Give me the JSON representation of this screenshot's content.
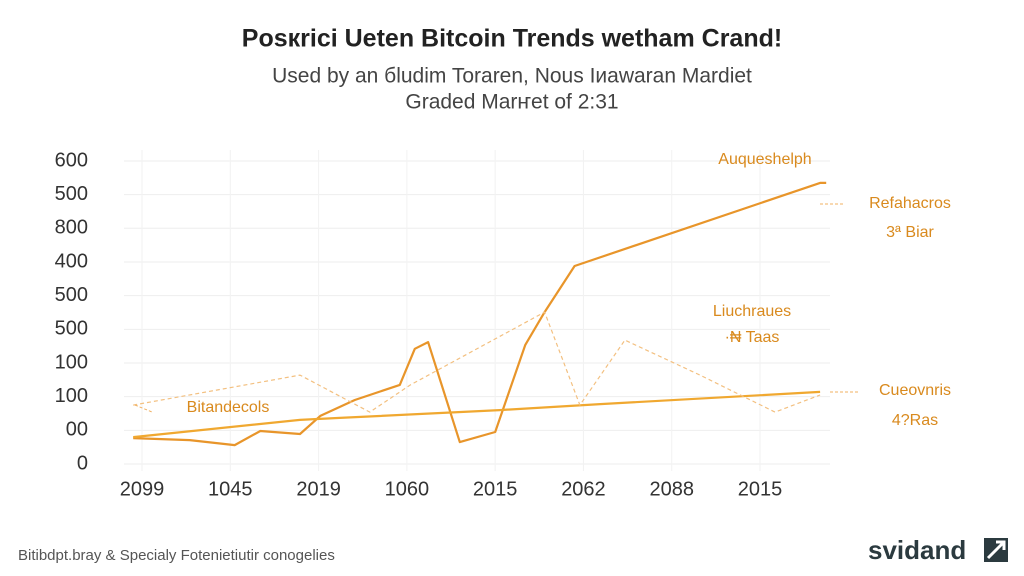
{
  "chart_data": {
    "type": "line",
    "title": "Posкrici Ueten Bitcoin Trends wetham Crand!",
    "subtitle": [
      "Used by an бludim Toraren, Nous Iиawaran Mardiet",
      "Graded Marҥet of 2:31"
    ],
    "footer": "Bitibdpt.bray & Specialy Fotenietiutir conogelies",
    "logo": "svidand",
    "xlim": [
      -0.2,
      7.8
    ],
    "xticks": [
      {
        "value": 0,
        "label": "2099"
      },
      {
        "value": 1,
        "label": "1045"
      },
      {
        "value": 2,
        "label": "2019"
      },
      {
        "value": 3,
        "label": "1060"
      },
      {
        "value": 4,
        "label": "2015"
      },
      {
        "value": 5,
        "label": "2062"
      },
      {
        "value": 6,
        "label": "2088"
      },
      {
        "value": 7,
        "label": "2015"
      }
    ],
    "ylim": [
      -20,
      900
    ],
    "yticks": [
      0,
      {
        "value": 100,
        "label": "00"
      },
      {
        "value": 200,
        "label": "100"
      },
      {
        "value": 300,
        "label": "100"
      },
      {
        "value": 400,
        "label": "500"
      },
      500,
      {
        "value": 600,
        "label": "400"
      },
      {
        "value": 700,
        "label": "800"
      },
      {
        "value": 800,
        "label": "500"
      },
      {
        "value": 900,
        "label": "600"
      }
    ],
    "grid": true,
    "series": [
      {
        "color": "#e8952a",
        "dashed": false,
        "x": [
          -0.1,
          0.54,
          1.05,
          1.34,
          1.79,
          2.02,
          2.41,
          2.92,
          3.09,
          3.24,
          3.6,
          4.0,
          4.34,
          4.56,
          4.9,
          7.68,
          7.75
        ],
        "values": [
          77,
          71,
          56,
          98,
          89,
          143,
          190,
          235,
          342,
          362,
          65,
          95,
          353,
          451,
          588,
          835,
          835
        ]
      },
      {
        "color": "#f0a830",
        "dashed": false,
        "x": [
          -0.1,
          1.79,
          2.24,
          4.05,
          5.19,
          7.68
        ],
        "values": [
          80,
          131,
          137,
          160,
          178,
          214
        ]
      },
      {
        "color": "#f3c080",
        "dashed": true,
        "x": [
          -0.1,
          1.79,
          2.58,
          3.04,
          4.56,
          4.96,
          5.47,
          6.32,
          7.17,
          7.68
        ],
        "values": [
          175,
          264,
          154,
          235,
          451,
          175,
          368,
          264,
          154,
          205
        ]
      }
    ],
    "annotations": [
      "Auqueshelph",
      "Refahacros",
      "3ª Biar",
      "Liuchraues",
      "·₦ Taas",
      "Cueovnris",
      "4?Ras",
      "Bitandecols"
    ]
  }
}
